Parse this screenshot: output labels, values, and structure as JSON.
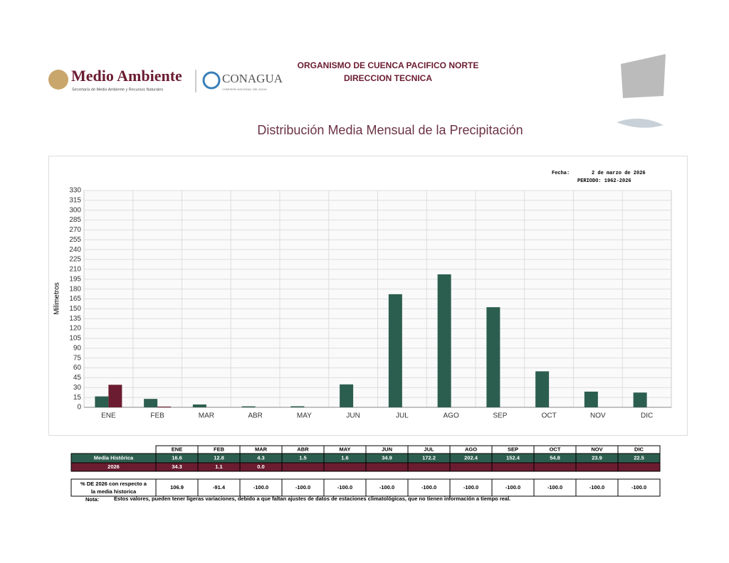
{
  "header": {
    "logo1": "Medio Ambiente",
    "logo1_sub": "Secretaría de Medio Ambiente y Recursos Naturales",
    "logo2": "CONAGUA",
    "logo2_sub": "COMISIÓN NACIONAL DEL AGUA",
    "org1": "ORGANISMO DE CUENCA PACIFICO NORTE",
    "org2": "DIRECCION TECNICA"
  },
  "chart_data": {
    "type": "bar",
    "title": "Distribución Media Mensual de la Precipitación",
    "fecha_label": "Fecha:",
    "fecha": "2 de marzo de 2026",
    "periodo": "PERIODO: 1962-2026",
    "ylabel": "Milimetros",
    "categories": [
      "ENE",
      "FEB",
      "MAR",
      "ABR",
      "MAY",
      "JUN",
      "JUL",
      "AGO",
      "SEP",
      "OCT",
      "NOV",
      "DIC"
    ],
    "series": [
      {
        "name": "Media Histórica",
        "color": "#2c5e4f",
        "values": [
          16.6,
          12.8,
          4.3,
          1.5,
          1.6,
          34.9,
          172.2,
          202.4,
          152.4,
          54.8,
          23.9,
          22.5
        ]
      },
      {
        "name": "2026",
        "color": "#6b1c30",
        "values": [
          34.3,
          1.1,
          0.0,
          null,
          null,
          null,
          null,
          null,
          null,
          null,
          null,
          null
        ],
        "value_labels": [
          "34.3",
          "1.1",
          "0.0",
          null,
          null,
          null,
          null,
          null,
          null,
          null,
          null,
          null
        ]
      }
    ],
    "ylim": [
      0,
      330
    ],
    "yticks": [
      0,
      15,
      30,
      45,
      60,
      75,
      90,
      105,
      120,
      135,
      150,
      165,
      180,
      195,
      210,
      225,
      240,
      255,
      270,
      285,
      300,
      315,
      330
    ],
    "grid": true
  },
  "table": {
    "pct_label": "% DE 2026 con respecto a la media historica",
    "pct": [
      "106.9",
      "-91.4",
      "-100.0",
      "-100.0",
      "-100.0",
      "-100.0",
      "-100.0",
      "-100.0",
      "-100.0",
      "-100.0",
      "-100.0",
      "-100.0"
    ],
    "note_label": "Nota:",
    "note": "Estos valores, pueden tener ligeras variaciones, debido a que faltan ajustes de datos de estaciones climatológicas, que no tienen información a tiempo real."
  }
}
